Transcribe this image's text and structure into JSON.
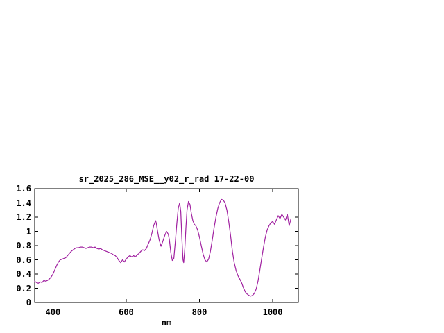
{
  "page": {
    "background": "#ffffff"
  },
  "chart_data": {
    "type": "line",
    "title": "sr_2025_286_MSE__y02_r_rad 17-22-00",
    "xlabel": "nm",
    "ylabel": "",
    "grid": false,
    "legend": "none",
    "line_color": "#a020a0",
    "axis_color": "#000000",
    "x_range": [
      350,
      1070
    ],
    "y_range": [
      0,
      1.6
    ],
    "x_ticks": [
      400,
      600,
      800,
      1000
    ],
    "x_tick_labels": [
      "400",
      "600",
      "800",
      "1000"
    ],
    "y_ticks": [
      0,
      0.2,
      0.4,
      0.6,
      0.8,
      1.0,
      1.2,
      1.4,
      1.6
    ],
    "y_tick_labels": [
      "0",
      "0.2",
      "0.4",
      "0.6",
      "0.8",
      "1",
      "1.2",
      "1.4",
      "1.6"
    ],
    "series": [
      {
        "name": "sr_2025_286_MSE__y02_r_rad",
        "x": [
          350,
          355,
          360,
          365,
          370,
          375,
          380,
          385,
          390,
          395,
          400,
          405,
          410,
          415,
          420,
          425,
          430,
          435,
          440,
          445,
          450,
          455,
          460,
          465,
          470,
          475,
          480,
          485,
          490,
          495,
          500,
          505,
          510,
          515,
          520,
          525,
          530,
          535,
          540,
          545,
          550,
          555,
          560,
          565,
          570,
          575,
          580,
          585,
          590,
          595,
          600,
          605,
          610,
          615,
          620,
          625,
          630,
          635,
          640,
          645,
          650,
          655,
          660,
          665,
          670,
          675,
          680,
          682,
          685,
          690,
          695,
          700,
          705,
          710,
          715,
          718,
          722,
          726,
          730,
          734,
          738,
          742,
          746,
          749,
          752,
          755,
          757,
          760,
          763,
          766,
          770,
          774,
          778,
          782,
          786,
          790,
          795,
          800,
          805,
          810,
          815,
          820,
          825,
          830,
          835,
          840,
          845,
          850,
          855,
          860,
          865,
          870,
          875,
          880,
          885,
          890,
          895,
          900,
          905,
          910,
          915,
          920,
          925,
          930,
          935,
          940,
          945,
          950,
          955,
          960,
          965,
          970,
          975,
          980,
          985,
          990,
          995,
          1000,
          1005,
          1010,
          1015,
          1020,
          1025,
          1030,
          1035,
          1040,
          1045,
          1050
        ],
        "y": [
          0.3,
          0.28,
          0.27,
          0.29,
          0.28,
          0.31,
          0.3,
          0.31,
          0.33,
          0.36,
          0.4,
          0.46,
          0.52,
          0.57,
          0.6,
          0.61,
          0.62,
          0.63,
          0.66,
          0.69,
          0.72,
          0.74,
          0.76,
          0.77,
          0.77,
          0.78,
          0.78,
          0.77,
          0.76,
          0.77,
          0.78,
          0.78,
          0.77,
          0.78,
          0.76,
          0.75,
          0.76,
          0.74,
          0.73,
          0.72,
          0.71,
          0.7,
          0.69,
          0.67,
          0.66,
          0.63,
          0.59,
          0.56,
          0.6,
          0.57,
          0.61,
          0.64,
          0.66,
          0.64,
          0.66,
          0.64,
          0.67,
          0.69,
          0.72,
          0.74,
          0.73,
          0.76,
          0.82,
          0.88,
          0.97,
          1.08,
          1.15,
          1.12,
          1.02,
          0.88,
          0.79,
          0.86,
          0.94,
          1.0,
          0.96,
          0.88,
          0.7,
          0.59,
          0.62,
          0.85,
          1.1,
          1.32,
          1.4,
          1.28,
          0.9,
          0.6,
          0.56,
          0.75,
          1.05,
          1.3,
          1.42,
          1.38,
          1.25,
          1.15,
          1.1,
          1.08,
          1.02,
          0.92,
          0.8,
          0.68,
          0.6,
          0.57,
          0.61,
          0.72,
          0.88,
          1.05,
          1.2,
          1.32,
          1.4,
          1.45,
          1.44,
          1.4,
          1.3,
          1.14,
          0.94,
          0.72,
          0.56,
          0.45,
          0.38,
          0.33,
          0.28,
          0.21,
          0.15,
          0.12,
          0.1,
          0.09,
          0.1,
          0.13,
          0.19,
          0.3,
          0.46,
          0.62,
          0.78,
          0.92,
          1.02,
          1.08,
          1.12,
          1.14,
          1.1,
          1.16,
          1.22,
          1.18,
          1.24,
          1.2,
          1.16,
          1.24,
          1.08,
          1.18
        ]
      }
    ]
  }
}
